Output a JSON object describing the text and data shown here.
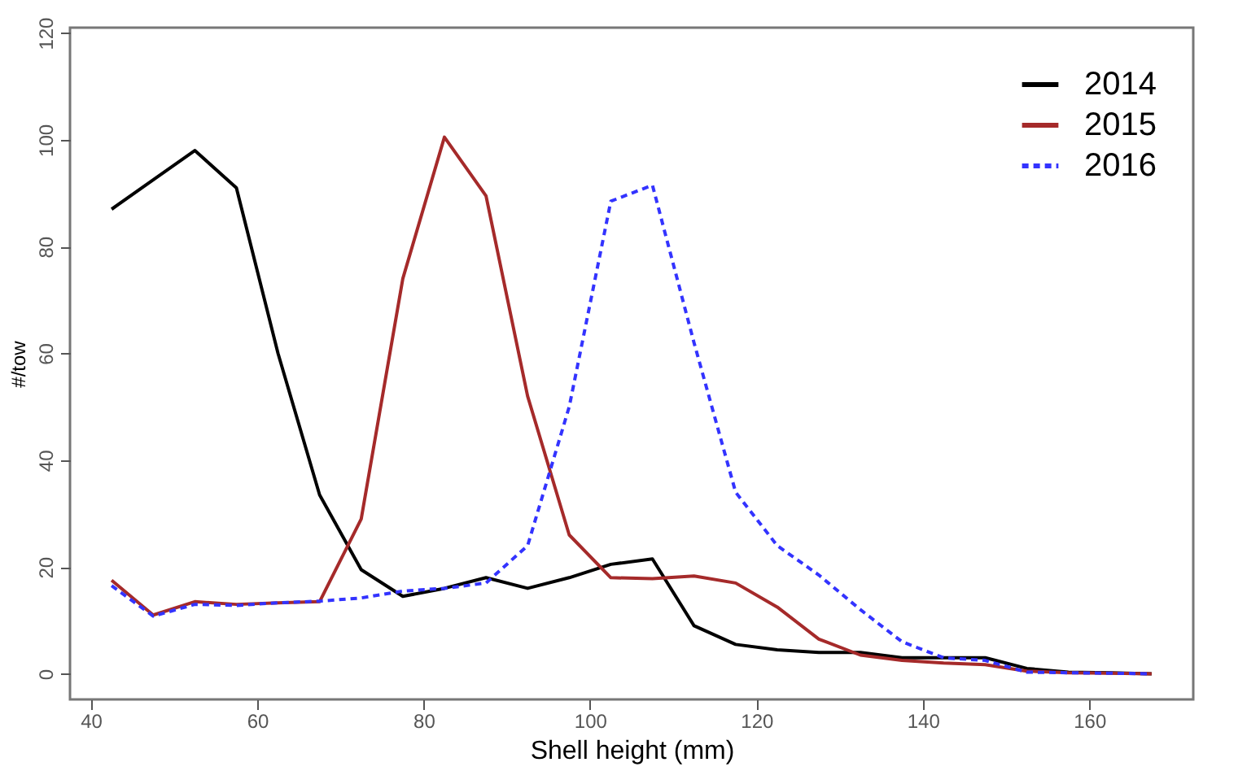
{
  "chart_data": {
    "type": "line",
    "xlabel": "Shell height (mm)",
    "ylabel": "#/tow",
    "x": [
      42.5,
      47.5,
      52.5,
      57.5,
      62.5,
      67.5,
      72.5,
      77.5,
      82.5,
      87.5,
      92.5,
      97.5,
      102.5,
      107.5,
      112.5,
      117.5,
      122.5,
      127.5,
      132.5,
      137.5,
      142.5,
      147.5,
      152.5,
      157.5,
      162.5,
      167.5
    ],
    "series": [
      {
        "name": "2014",
        "color": "#000000",
        "line_style": "solid",
        "values": [
          87,
          92.5,
          98,
          91,
          60,
          33.5,
          19.5,
          14.5,
          16,
          18,
          16,
          18,
          20.5,
          21.5,
          9,
          5.5,
          4.5,
          4,
          4,
          3,
          3,
          3,
          1,
          0.3,
          0.2,
          0
        ]
      },
      {
        "name": "2015",
        "color": "#a52a2a",
        "line_style": "solid",
        "values": [
          17.5,
          11,
          13.5,
          13,
          13.3,
          13.5,
          29,
          74,
          100.5,
          89.5,
          52,
          26,
          18,
          17.8,
          18.3,
          17,
          12.5,
          6.5,
          3.5,
          2.5,
          2,
          1.7,
          0.5,
          0.2,
          0.1,
          0
        ]
      },
      {
        "name": "2016",
        "color": "#3333ff",
        "line_style": "dashed",
        "values": [
          16.5,
          10.8,
          13,
          12.8,
          13.3,
          13.6,
          14.2,
          15.5,
          16,
          17,
          24,
          50,
          88.5,
          91.5,
          62,
          34,
          24,
          18.5,
          12,
          6,
          3,
          2.5,
          0.3,
          0.2,
          0.1,
          0
        ]
      }
    ],
    "xlim": [
      37.5,
      172.5
    ],
    "xticks": [
      40,
      60,
      80,
      100,
      120,
      140,
      160
    ],
    "ylim": [
      -4.8,
      121
    ],
    "yticks": [
      0,
      20,
      40,
      60,
      80,
      100,
      120
    ],
    "grid": false,
    "legend": "top right",
    "marker": "none"
  }
}
